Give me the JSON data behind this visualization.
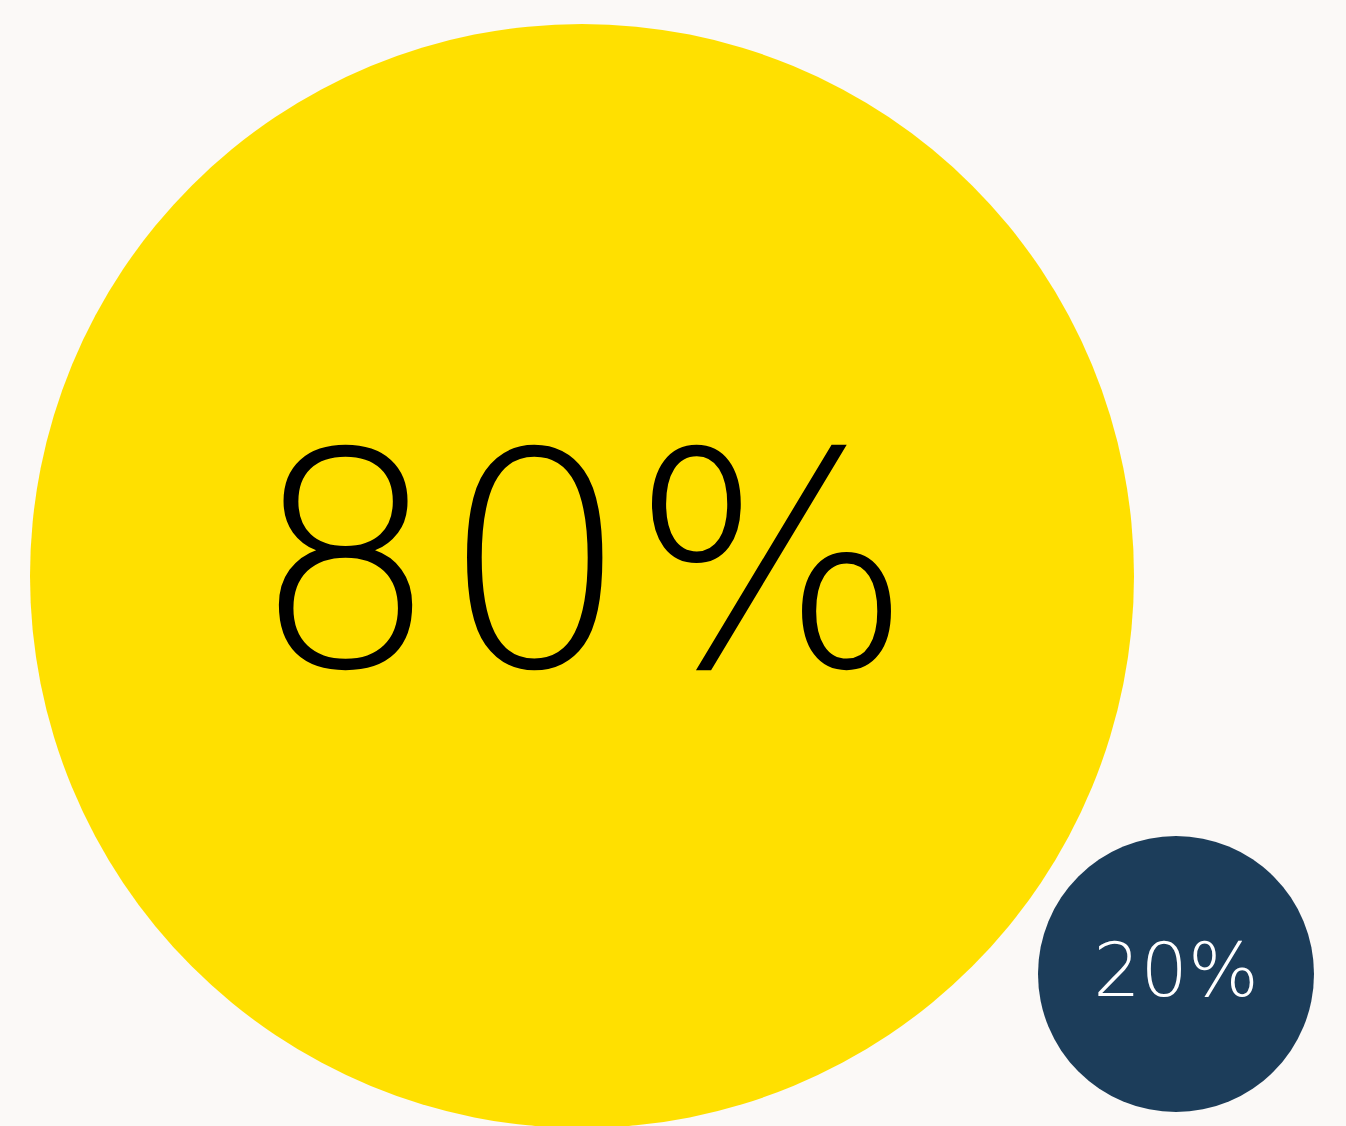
{
  "chart_data": {
    "type": "other",
    "categories": [
      null,
      null
    ],
    "values": [
      80,
      20
    ],
    "colors": [
      "#ffe000",
      "#1c3d5a"
    ],
    "value_labels": [
      "80%",
      "20%"
    ]
  }
}
